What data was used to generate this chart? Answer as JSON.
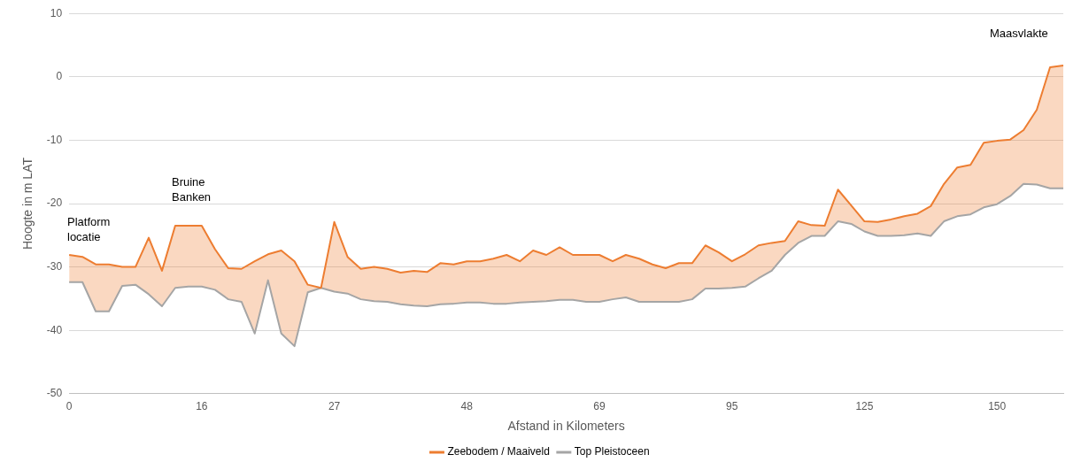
{
  "chart_data": {
    "type": "line",
    "xlabel": "Afstand in Kilometers",
    "ylabel": "Hoogte in m LAT",
    "categories": [
      "0",
      null,
      null,
      null,
      null,
      null,
      null,
      null,
      null,
      null,
      "16",
      null,
      null,
      null,
      null,
      null,
      null,
      null,
      null,
      null,
      "27",
      null,
      null,
      null,
      null,
      null,
      null,
      null,
      null,
      null,
      "48",
      null,
      null,
      null,
      null,
      null,
      null,
      null,
      null,
      null,
      "69",
      null,
      null,
      null,
      null,
      null,
      null,
      null,
      null,
      null,
      "95",
      null,
      null,
      null,
      null,
      null,
      null,
      null,
      null,
      null,
      "125",
      null,
      null,
      null,
      null,
      null,
      null,
      null,
      null,
      null,
      "150",
      null,
      null,
      null,
      null,
      null
    ],
    "series": [
      {
        "name": "Zeebodem / Maaiveld",
        "color": "#ed7d31",
        "values": [
          -28.1,
          -28.4,
          -29.6,
          -29.6,
          -30.0,
          -30.0,
          -25.4,
          -30.6,
          -23.5,
          -23.5,
          -23.5,
          -27.2,
          -30.2,
          -30.3,
          -29.1,
          -28.0,
          -27.4,
          -29.1,
          -32.8,
          -33.3,
          -22.9,
          -28.4,
          -30.3,
          -30.0,
          -30.3,
          -30.9,
          -30.6,
          -30.8,
          -29.4,
          -29.6,
          -29.1,
          -29.1,
          -28.7,
          -28.1,
          -29.1,
          -27.4,
          -28.1,
          -26.9,
          -28.1,
          -28.1,
          -28.1,
          -29.1,
          -28.1,
          -28.7,
          -29.6,
          -30.2,
          -29.4,
          -29.4,
          -26.6,
          -27.7,
          -29.1,
          -28.0,
          -26.6,
          -26.2,
          -25.9,
          -22.8,
          -23.4,
          -23.5,
          -17.8,
          -20.3,
          -22.8,
          -22.9,
          -22.5,
          -22.0,
          -21.6,
          -20.4,
          -16.9,
          -14.3,
          -13.9,
          -10.4,
          -10.1,
          -9.9,
          -8.4,
          -5.2,
          1.5,
          1.8
        ],
        "upper": [
          -28.1,
          -28.4,
          -29.6,
          -29.6,
          -30.0,
          -30.0,
          -25.4,
          -30.6,
          -23.5,
          -23.5,
          -23.5,
          -27.2,
          -30.2,
          -30.3,
          -29.1,
          -28.0,
          -27.4,
          -29.1,
          -32.8,
          -33.3,
          -22.9,
          -28.4,
          -30.3,
          -30.0,
          -30.3,
          -30.9,
          -30.6,
          -30.8,
          -29.4,
          -29.6,
          -29.1,
          -29.1,
          -28.7,
          -28.1,
          -29.1,
          -27.4,
          -28.1,
          -26.9,
          -28.1,
          -28.1,
          -28.1,
          -29.1,
          -28.1,
          -28.7,
          -29.6,
          -30.2,
          -29.4,
          -29.4,
          -26.6,
          -27.7,
          -29.1,
          -28.0,
          -26.6,
          -26.2,
          -25.9,
          -22.8,
          -23.4,
          -23.5,
          -17.8,
          -20.3,
          -22.8,
          -22.9,
          -22.5,
          -22.0,
          -21.6,
          -20.4,
          -16.9,
          -14.3,
          -13.9,
          -10.4,
          -10.1,
          -9.9,
          -8.4,
          -5.2,
          1.5,
          1.8
        ],
        "lower": [
          -32.4,
          -32.4,
          -37.0,
          -37.0,
          -33.0,
          -32.8,
          -34.3,
          -36.2,
          -33.3,
          -33.1,
          -33.1,
          -33.6,
          -35.1,
          -35.5,
          -40.5,
          -32.1,
          -40.5,
          -42.5,
          -34.0,
          -33.3,
          -33.9,
          -34.2,
          -35.1,
          -35.4,
          -35.5,
          -35.9,
          -36.1,
          -36.2,
          -35.9,
          -35.8,
          -35.6,
          -35.6,
          -35.8,
          -35.8,
          -35.6,
          -35.5,
          -35.4,
          -35.2,
          -35.2,
          -35.5,
          -35.5,
          -35.1,
          -34.8,
          -35.5,
          -35.5,
          -35.5,
          -35.5,
          -35.1,
          -33.4,
          -33.4,
          -33.3,
          -33.1,
          -31.8,
          -30.6,
          -28.1,
          -26.2,
          -25.1,
          -25.1,
          -22.8,
          -23.2,
          -24.4,
          -25.1,
          -25.1,
          -25.0,
          -24.7,
          -25.1,
          -22.8,
          -22.0,
          -21.7,
          -20.6,
          -20.1,
          -18.8,
          -16.9,
          -17.0,
          -17.6,
          -17.6
        ]
      },
      {
        "name": "Top Pleistoceen",
        "color": "#a5a5a5",
        "values": [
          -32.4,
          -32.4,
          -37.0,
          -37.0,
          -33.0,
          -32.8,
          -34.3,
          -36.2,
          -33.3,
          -33.1,
          -33.1,
          -33.6,
          -35.1,
          -35.5,
          -40.5,
          -32.1,
          -40.5,
          -42.5,
          -34.0,
          -33.3,
          -33.9,
          -34.2,
          -35.1,
          -35.4,
          -35.5,
          -35.9,
          -36.1,
          -36.2,
          -35.9,
          -35.8,
          -35.6,
          -35.6,
          -35.8,
          -35.8,
          -35.6,
          -35.5,
          -35.4,
          -35.2,
          -35.2,
          -35.5,
          -35.5,
          -35.1,
          -34.8,
          -35.5,
          -35.5,
          -35.5,
          -35.5,
          -35.1,
          -33.4,
          -33.4,
          -33.3,
          -33.1,
          -31.8,
          -30.6,
          -28.1,
          -26.2,
          -25.1,
          -25.1,
          -22.8,
          -23.2,
          -24.4,
          -25.1,
          -25.1,
          -25.0,
          -24.7,
          -25.1,
          -22.8,
          -22.0,
          -21.7,
          -20.6,
          -20.1,
          -18.8,
          -16.9,
          -17.0,
          -17.6,
          -17.6
        ]
      }
    ],
    "ylim": [
      -50,
      10
    ],
    "yticks": [
      -50,
      -40,
      -30,
      -20,
      -10,
      0,
      10
    ],
    "grid": "y",
    "legend": "bottom",
    "marker": "none",
    "line_style": "solid",
    "annotations": [
      "Platform locatie",
      "Bruine Banken",
      "Maasvlakte"
    ]
  }
}
